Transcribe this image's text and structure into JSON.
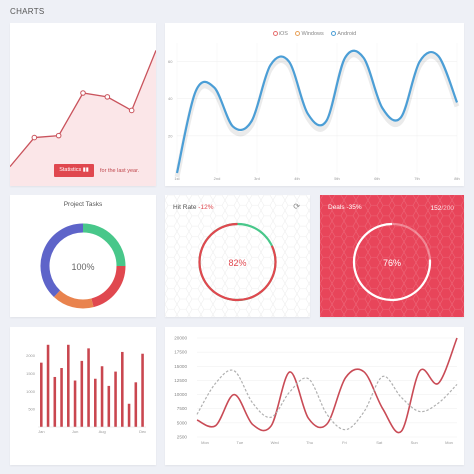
{
  "header": {
    "title": "CHARTS"
  },
  "statistics": {
    "button_label": "Statistics",
    "button_icon": "bar-chart-icon",
    "note": "for the last year.",
    "color": "#c9535c",
    "fill": "#fbe6e8",
    "chart_data": {
      "type": "line",
      "values": [
        5,
        20,
        21,
        43,
        41,
        34,
        65
      ],
      "ylim": [
        -5,
        75
      ]
    }
  },
  "os_chart": {
    "legend": [
      {
        "name": "iOS",
        "color": "#e66d6d"
      },
      {
        "name": "Windows",
        "color": "#e8a25b"
      },
      {
        "name": "Android",
        "color": "#4b9ed6"
      }
    ],
    "chart_data": {
      "type": "line",
      "categories": [
        "1st",
        "2nd",
        "3rd",
        "4th",
        "5th",
        "6th",
        "7th",
        "8th"
      ],
      "yticks": [
        "60",
        "40",
        "20"
      ],
      "ylim": [
        0,
        70
      ],
      "series": [
        {
          "color": "#4b9ed6",
          "x": [
            0,
            1,
            2,
            3,
            4,
            5,
            6,
            7,
            8,
            9,
            10,
            11,
            12,
            13,
            14,
            15
          ],
          "values": [
            0,
            44,
            46,
            25,
            28,
            58,
            60,
            32,
            28,
            62,
            62,
            35,
            30,
            60,
            63,
            38
          ]
        }
      ]
    }
  },
  "project_tasks": {
    "title": "Project Tasks",
    "center": "100%",
    "chart_data": {
      "type": "pie",
      "values": [
        25,
        21,
        16,
        38
      ],
      "colors": [
        "#48c78a",
        "#e0484f",
        "#e9834e",
        "#5e64c9"
      ]
    }
  },
  "hit_rate": {
    "title": "Hit Rate",
    "change": "-12%",
    "refresh_icon": "refresh-icon",
    "value": "82%",
    "fraction": 0.82,
    "track_color": "#48c78a",
    "arc_color": "#e0484f"
  },
  "deals": {
    "title": "Deals",
    "change": "-35%",
    "count": "152",
    "total": "200",
    "value": "76%",
    "fraction": 0.76,
    "bg": "#e8455a"
  },
  "bars": {
    "color": "#c9464f",
    "chart_data": {
      "type": "bar",
      "x_labels": [
        "Jan",
        "Jun",
        "Aug",
        "Dec"
      ],
      "yticks": [
        "2000",
        "1500",
        "1000",
        "500"
      ],
      "ylim": [
        0,
        2350
      ],
      "values": [
        1800,
        2300,
        1400,
        1650,
        2300,
        1300,
        1850,
        2200,
        1350,
        1700,
        1150,
        1550,
        2100,
        650,
        1250,
        2050
      ]
    }
  },
  "weekly": {
    "chart_data": {
      "type": "line",
      "categories": [
        "Mon",
        "Tue",
        "Wed",
        "Thu",
        "Fri",
        "Sat",
        "Sun",
        "Mon"
      ],
      "yticks": [
        "20000",
        "17500",
        "15000",
        "12500",
        "10000",
        "7500",
        "5000",
        "2500"
      ],
      "ylim": [
        2500,
        20000
      ],
      "series": [
        {
          "color": "#c94b56",
          "dashed": false,
          "x": [
            0,
            1,
            2,
            3,
            4,
            5,
            6,
            7,
            8,
            9,
            10,
            11,
            12,
            13,
            14
          ],
          "values": [
            5500,
            4500,
            10000,
            4700,
            4500,
            14000,
            5800,
            4800,
            13000,
            14000,
            7500,
            3500,
            14200,
            12000,
            20000
          ]
        },
        {
          "color": "#b0b0b0",
          "dashed": true,
          "x": [
            0,
            1,
            2,
            3,
            4,
            5,
            6,
            7,
            8,
            9,
            10,
            11,
            12,
            13,
            14
          ],
          "values": [
            6500,
            12000,
            14200,
            8500,
            6000,
            10500,
            12800,
            6500,
            3800,
            7000,
            13200,
            9500,
            7000,
            8500,
            11800
          ]
        }
      ]
    }
  }
}
